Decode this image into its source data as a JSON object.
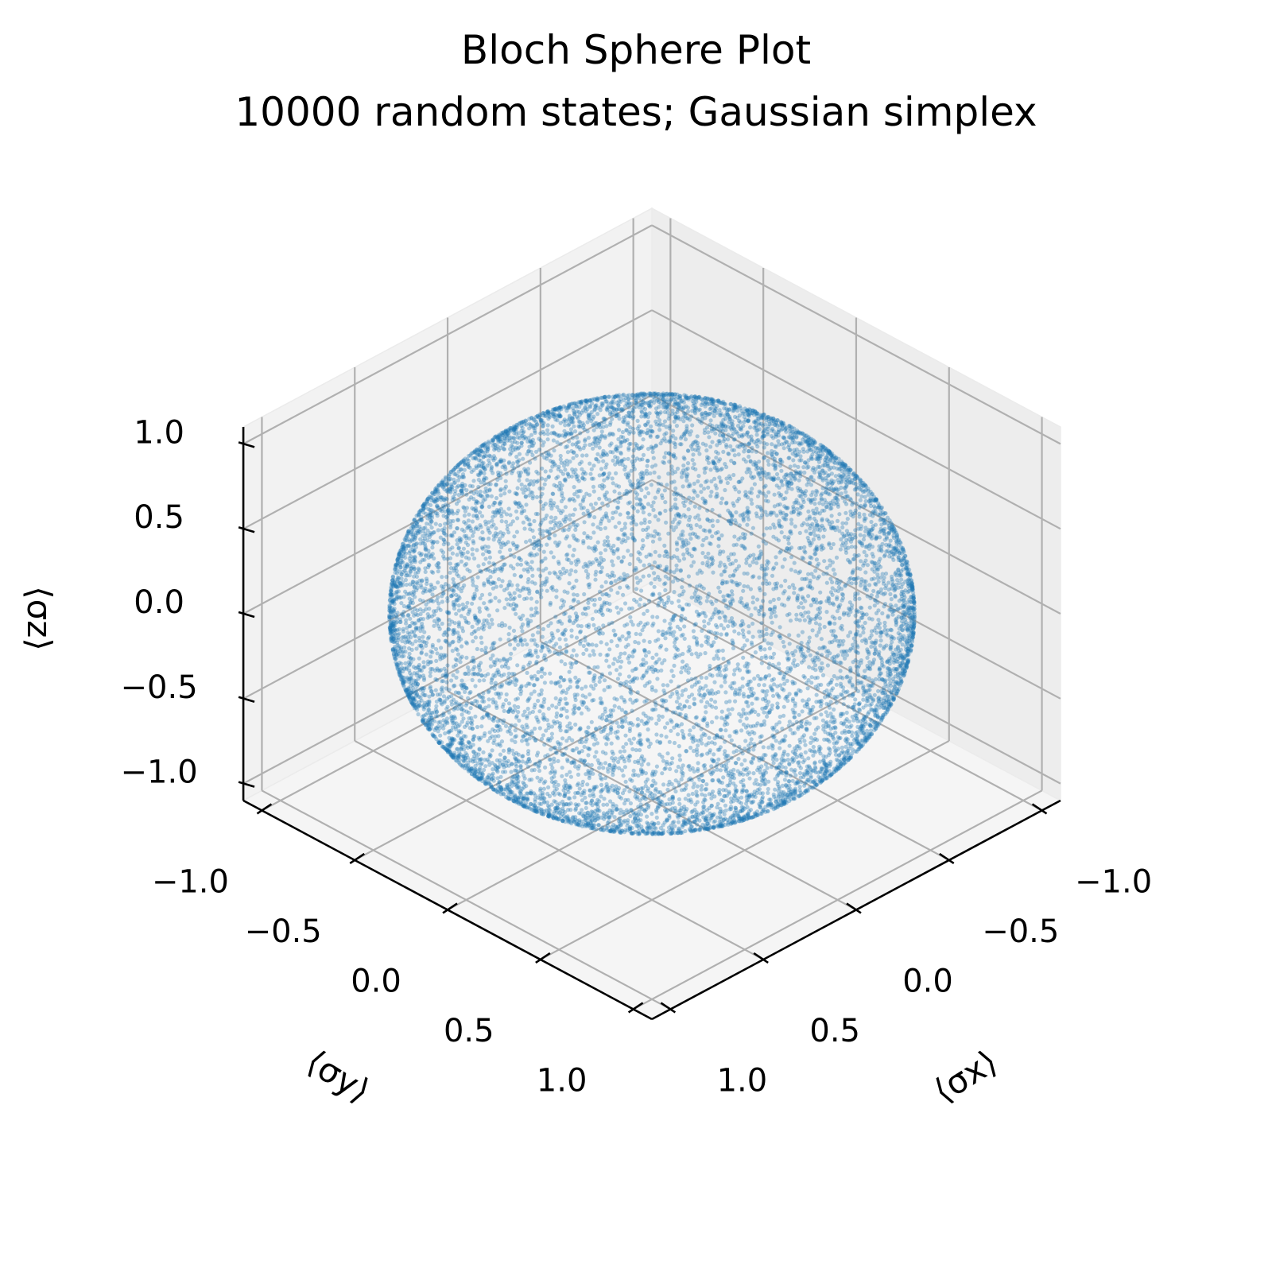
{
  "chart_data": {
    "type": "scatter",
    "projection": "3d",
    "title": "Bloch Sphere Plot",
    "subtitle": "10000 random states; Gaussian simplex",
    "xlabel": "⟨σx⟩",
    "ylabel": "⟨σy⟩",
    "zlabel": "⟨σz⟩",
    "xlim": [
      -1.1,
      1.1
    ],
    "ylim": [
      -1.1,
      1.1
    ],
    "zlim": [
      -1.1,
      1.1
    ],
    "xticks": [
      -1.0,
      -0.5,
      0.0,
      0.5,
      1.0
    ],
    "yticks": [
      -1.0,
      -0.5,
      0.0,
      0.5,
      1.0
    ],
    "zticks": [
      -1.0,
      -0.5,
      0.0,
      0.5,
      1.0
    ],
    "xtick_labels": [
      "−1.0",
      "−0.5",
      "0.0",
      "0.5",
      "1.0"
    ],
    "ytick_labels": [
      "−1.0",
      "−0.5",
      "0.0",
      "0.5",
      "1.0"
    ],
    "ztick_labels": [
      "−1.0",
      "−0.5",
      "0.0",
      "0.5",
      "1.0"
    ],
    "grid": true,
    "point_color": "#1f77b4",
    "point_alpha": 0.35,
    "n_points": 10000,
    "distribution": "points uniformly distributed on the surface of the unit sphere (radius 1)"
  }
}
